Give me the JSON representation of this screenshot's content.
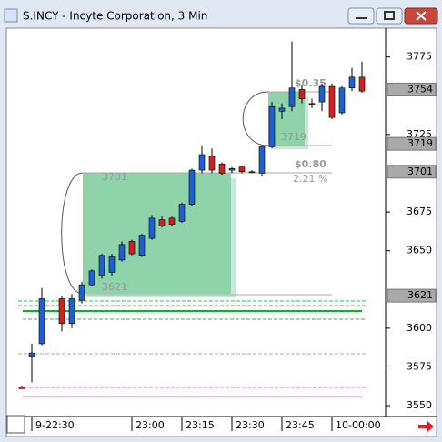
{
  "window_title": "S.INCY - Incyte Corporation, 3 Min",
  "chart_data": {
    "type": "candlestick",
    "categories": [
      null,
      "9-22:30",
      null,
      null,
      null,
      null,
      null,
      null,
      null,
      null,
      null,
      "23:00",
      null,
      null,
      null,
      null,
      "23:15",
      null,
      null,
      null,
      null,
      "23:30",
      null,
      null,
      null,
      null,
      "23:45",
      null,
      null,
      null,
      null,
      "10-00:00",
      null,
      null,
      null
    ],
    "open": [
      3562,
      3582,
      3590,
      null,
      3619,
      3603,
      3618,
      3628,
      3634,
      3636,
      3644,
      3656,
      3647,
      3658,
      3670,
      3671,
      3669,
      3680,
      3702,
      3711,
      3706,
      3702,
      3704,
      3701,
      3700,
      3717,
      3740,
      3743,
      3754,
      3745,
      3746,
      3756,
      3739,
      3755,
      3762
    ],
    "high": [
      3563,
      3590,
      3626,
      null,
      3621,
      3622,
      3630,
      3638,
      3648,
      3648,
      3656,
      3657,
      3661,
      3673,
      3672,
      3672,
      3681,
      3703,
      3718,
      3716,
      3707,
      3704,
      3705,
      3702,
      3718,
      3746,
      3745,
      3785,
      3757,
      3748,
      3758,
      3758,
      3756,
      3768,
      3772
    ],
    "low": [
      3561,
      3565,
      3589,
      null,
      3598,
      3600,
      3616,
      3627,
      3632,
      3634,
      3643,
      3647,
      3646,
      3657,
      3665,
      3666,
      3668,
      3679,
      3700,
      3700,
      3699,
      3700,
      3700,
      3700,
      3698,
      3716,
      3735,
      3740,
      3745,
      3742,
      3740,
      3735,
      3738,
      3753,
      3752
    ],
    "close": [
      3561,
      3584,
      3619,
      null,
      3603,
      3619,
      3628,
      3637,
      3647,
      3646,
      3654,
      3648,
      3660,
      3671,
      3666,
      3667,
      3680,
      3702,
      3712,
      3702,
      3700,
      3703,
      3701,
      3701,
      3717,
      3743,
      3742,
      3755,
      3748,
      3745,
      3756,
      3736,
      3755,
      3762,
      3753
    ],
    "up_color": "#1f5fd0",
    "down_color": "#d02020",
    "ylim": [
      3543,
      3793
    ],
    "yticks": [
      3550,
      3575,
      3600,
      3650,
      3675,
      3725,
      3775
    ],
    "price_tags": [
      3754,
      3719,
      3701,
      3621
    ],
    "annotations": [
      "3701",
      "3621",
      "3719",
      "$0.35",
      "$0.80",
      "2.21 %"
    ]
  }
}
